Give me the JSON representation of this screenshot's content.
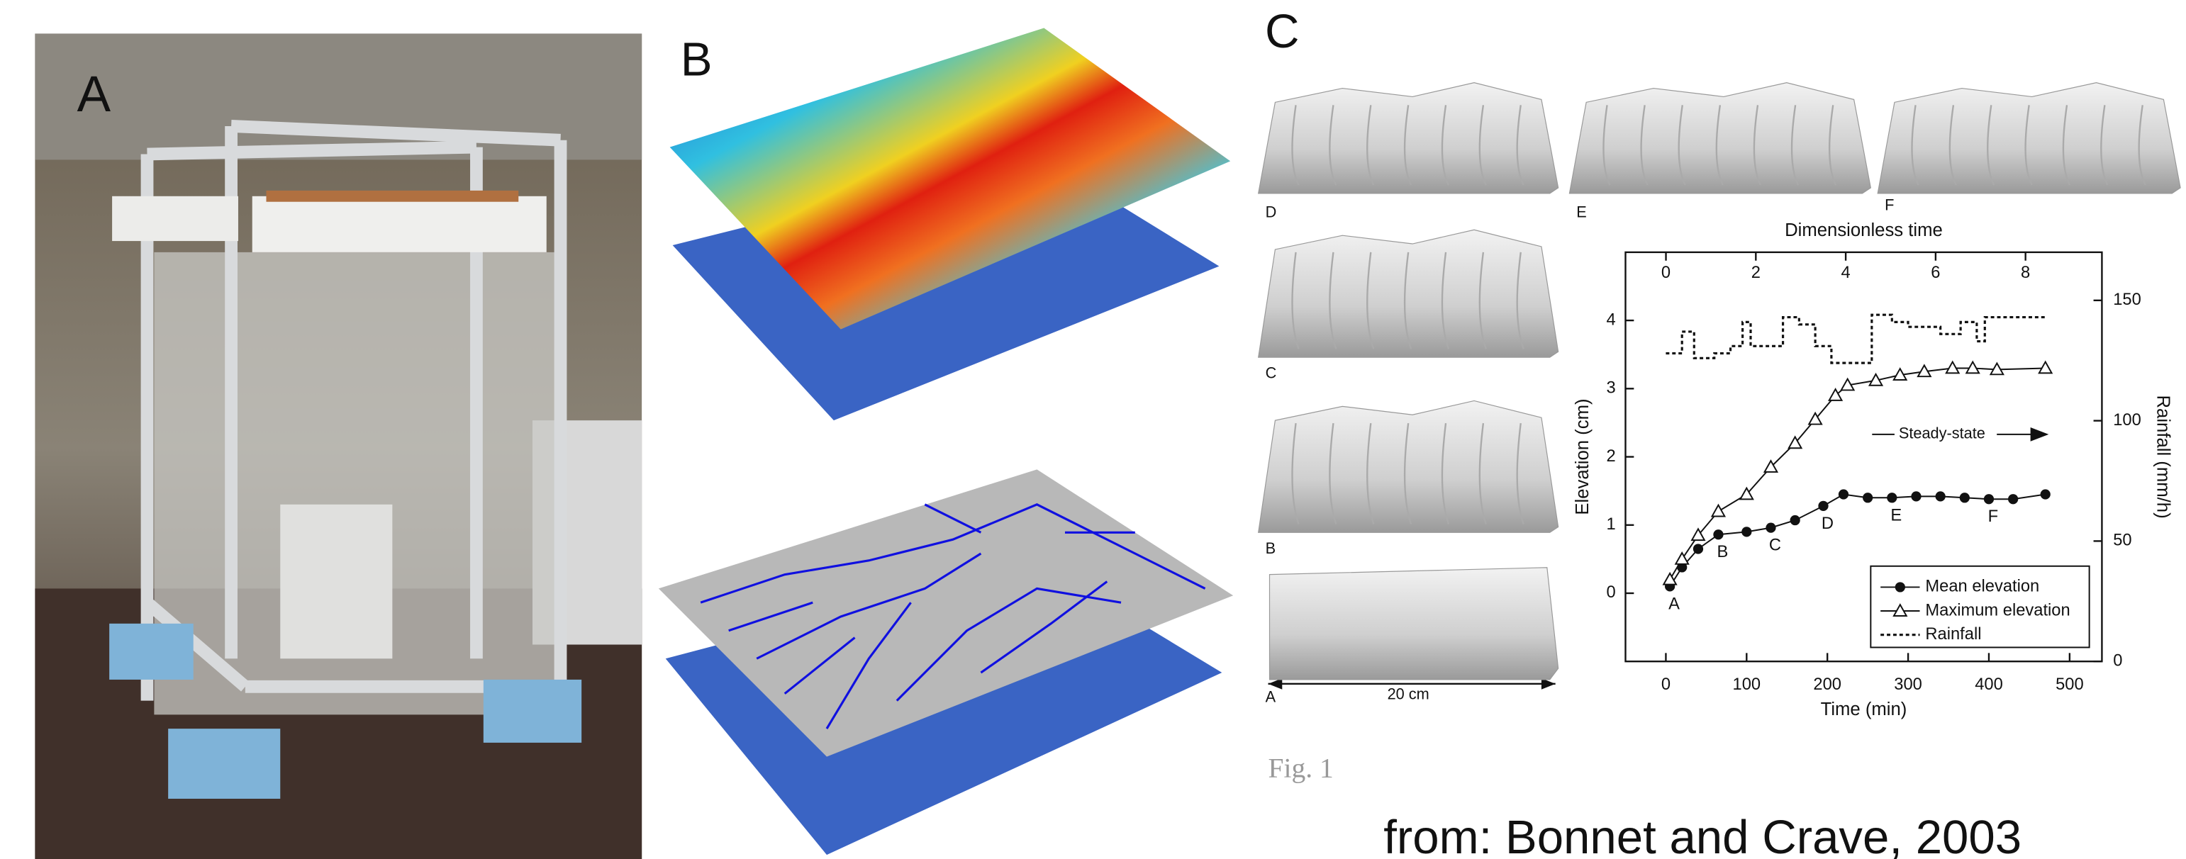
{
  "panel_a": {
    "label": "A"
  },
  "panel_b": {
    "label": "B"
  },
  "panel_c": {
    "label": "C",
    "tiles": [
      "D",
      "E",
      "F",
      "C",
      "B",
      "A"
    ],
    "scale": "20 cm"
  },
  "figure_label": "Fig. 1",
  "footer": "from: Bonnet and Crave, 2003",
  "chart_data": {
    "type": "line",
    "x_label": "Time (min)",
    "y_label": "Elevation (cm)",
    "y2_label": "Rainfall (mm/h)",
    "x2_label": "Dimensionless time",
    "xlim": [
      -50,
      540
    ],
    "xticks": [
      0,
      100,
      200,
      300,
      400,
      500
    ],
    "x2lim": [
      -0.9,
      9.7
    ],
    "x2ticks": [
      0,
      2,
      4,
      6,
      8
    ],
    "ylim": [
      -1,
      5
    ],
    "yticks": [
      0,
      1,
      2,
      3,
      4
    ],
    "y2lim": [
      0,
      170
    ],
    "y2ticks": [
      0,
      50,
      100,
      150
    ],
    "annotation": "Steady-state",
    "series": [
      {
        "name": "Mean elevation",
        "marker": "circle",
        "color": "#111",
        "x": [
          5,
          20,
          40,
          65,
          100,
          130,
          160,
          195,
          220,
          250,
          280,
          310,
          340,
          370,
          400,
          430,
          470
        ],
        "values": [
          0.1,
          0.38,
          0.65,
          0.86,
          0.9,
          0.96,
          1.07,
          1.28,
          1.45,
          1.4,
          1.4,
          1.42,
          1.42,
          1.4,
          1.38,
          1.38,
          1.45
        ],
        "labels": [
          "A",
          null,
          null,
          "B",
          null,
          "C",
          null,
          "D",
          null,
          null,
          "E",
          null,
          null,
          null,
          "F",
          null,
          null
        ]
      },
      {
        "name": "Maximum elevation",
        "marker": "triangle",
        "color": "#111",
        "x": [
          5,
          20,
          40,
          65,
          100,
          130,
          160,
          185,
          210,
          225,
          260,
          290,
          320,
          355,
          380,
          410,
          470
        ],
        "values": [
          0.2,
          0.5,
          0.85,
          1.2,
          1.45,
          1.85,
          2.2,
          2.55,
          2.9,
          3.05,
          3.12,
          3.2,
          3.25,
          3.3,
          3.3,
          3.28,
          3.3
        ]
      },
      {
        "name": "Rainfall",
        "marker": "none",
        "color": "#111",
        "axis": "y2",
        "dash": true,
        "x": [
          0,
          20,
          20,
          35,
          35,
          60,
          60,
          80,
          80,
          95,
          95,
          105,
          105,
          130,
          130,
          145,
          145,
          165,
          165,
          185,
          185,
          205,
          205,
          230,
          230,
          255,
          255,
          280,
          280,
          300,
          300,
          340,
          340,
          365,
          365,
          385,
          385,
          395,
          395,
          410,
          410,
          470
        ],
        "values": [
          128,
          128,
          137,
          137,
          126,
          126,
          128,
          128,
          131,
          131,
          141,
          141,
          131,
          131,
          131,
          131,
          143,
          143,
          140,
          140,
          131,
          131,
          124,
          124,
          124,
          124,
          144,
          144,
          141,
          141,
          139,
          139,
          136,
          136,
          141,
          141,
          133,
          133,
          143,
          143,
          143,
          143
        ]
      }
    ]
  }
}
